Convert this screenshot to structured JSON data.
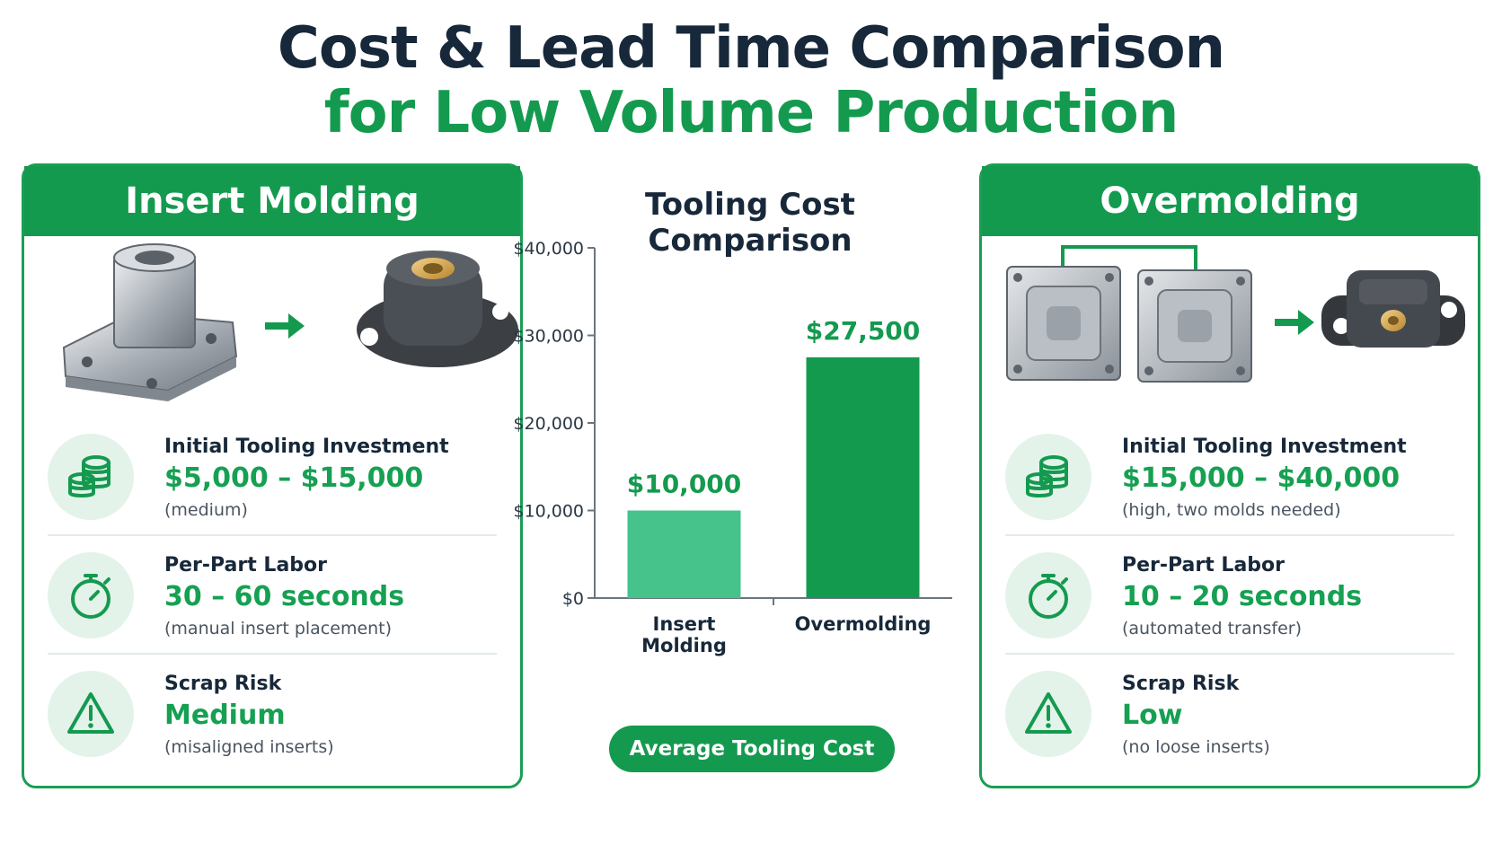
{
  "title": {
    "line1": "Cost & Lead Time Comparison",
    "line2": "for Low Volume Production"
  },
  "colors": {
    "brand_green": "#149a4f",
    "light_green": "#45c38a",
    "navy": "#17283a"
  },
  "left_panel": {
    "heading": "Insert Molding",
    "metrics": [
      {
        "icon": "coins-icon",
        "label": "Initial Tooling Investment",
        "value": "$5,000 – $15,000",
        "note": "(medium)"
      },
      {
        "icon": "stopwatch-icon",
        "label": "Per-Part Labor",
        "value": "30 – 60 seconds",
        "note": "(manual insert placement)"
      },
      {
        "icon": "warning-icon",
        "label": "Scrap Risk",
        "value": "Medium",
        "note": "(misaligned inserts)"
      }
    ]
  },
  "right_panel": {
    "heading": "Overmolding",
    "metrics": [
      {
        "icon": "coins-icon",
        "label": "Initial Tooling Investment",
        "value": "$15,000 – $40,000",
        "note": "(high, two molds needed)"
      },
      {
        "icon": "stopwatch-icon",
        "label": "Per-Part Labor",
        "value": "10 – 20 seconds",
        "note": "(automated transfer)"
      },
      {
        "icon": "warning-icon",
        "label": "Scrap Risk",
        "value": "Low",
        "note": "(no loose inserts)"
      }
    ]
  },
  "chart_data": {
    "type": "bar",
    "title": "Tooling Cost Comparison",
    "categories": [
      "Insert Molding",
      "Overmolding"
    ],
    "values": [
      10000,
      27500
    ],
    "data_labels": [
      "$10,000",
      "$27,500"
    ],
    "bar_colors": [
      "#45c38a",
      "#149a4f"
    ],
    "ylim": [
      0,
      40000
    ],
    "yticks": [
      0,
      10000,
      20000,
      30000,
      40000
    ],
    "ytick_labels": [
      "$0",
      "$10,000",
      "$20,000",
      "$30,000",
      "$40,000"
    ],
    "xlabel": "",
    "ylabel": "",
    "grid": false,
    "legend": "none",
    "caption_button": "Average Tooling Cost"
  }
}
